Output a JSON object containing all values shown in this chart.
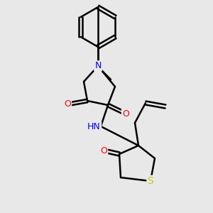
{
  "bg_color": "#e8e8e8",
  "bond_color": "#000000",
  "bond_width": 1.8,
  "atom_colors": {
    "O": "#ff0000",
    "N": "#0000ff",
    "S": "#cccc00",
    "H": "#000000",
    "C": "#000000"
  },
  "font_size_atom": 9,
  "font_size_small": 7.5,
  "title": ""
}
